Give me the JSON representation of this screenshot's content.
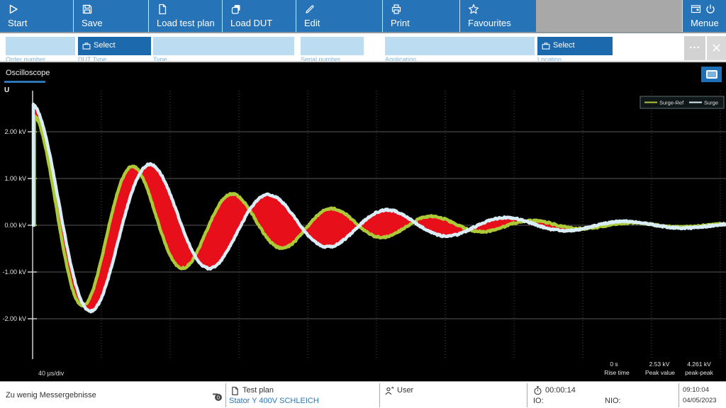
{
  "toolbar": {
    "buttons": [
      {
        "label": "Start",
        "icon": "play-icon"
      },
      {
        "label": "Save",
        "icon": "save-icon"
      },
      {
        "label": "Load test plan",
        "icon": "document-icon"
      },
      {
        "label": "Load DUT",
        "icon": "copy-icon"
      },
      {
        "label": "Edit",
        "icon": "pencil-icon"
      },
      {
        "label": "Print",
        "icon": "printer-icon"
      },
      {
        "label": "Favourites",
        "icon": "star-icon"
      }
    ],
    "menu_button": {
      "label": "Menue",
      "icons": [
        "window-icon",
        "power-icon"
      ]
    },
    "accent_color": "#2673b8"
  },
  "form": {
    "fields": [
      {
        "label": "Order number",
        "type": "input",
        "value": "",
        "placeholder": ""
      },
      {
        "label": "DUT Type",
        "type": "select",
        "button_label": "Select"
      },
      {
        "label": "Type",
        "type": "input",
        "value": "",
        "placeholder": ""
      },
      {
        "label": "Serial number",
        "type": "input",
        "value": "",
        "placeholder": ""
      },
      {
        "label": "Application",
        "type": "input",
        "value": "",
        "placeholder": ""
      },
      {
        "label": "Location",
        "type": "select",
        "button_label": "Select"
      }
    ],
    "ellipsis_button": "...",
    "field_color": "#bcdcf2",
    "select_color": "#1c69ae"
  },
  "scope": {
    "tab_label": "Oscilloscope"
  },
  "chart_data": {
    "type": "line",
    "title": "Oscilloscope",
    "y_axis": {
      "label": "U",
      "unit": "kV",
      "ticks": [
        "2.00 kV",
        "1.00 kV",
        "0.00 kV",
        "-1.00 kV",
        "-2.00 kV"
      ],
      "tick_values": [
        2,
        1,
        0,
        -1,
        -2
      ],
      "range_kv": [
        -2.9,
        2.9
      ]
    },
    "x_axis": {
      "div_label": "40 µs/div",
      "us_per_div": 40,
      "divisions": 10,
      "grid": "dotted"
    },
    "legend": [
      {
        "name": "Surge-Ref",
        "color": "#acca38"
      },
      {
        "name": "Surge",
        "color": "#d8edf6"
      }
    ],
    "diff_fill_color": "#e60f1a",
    "series": [
      {
        "name": "Surge-Ref",
        "color": "#acca38",
        "amplitude_kv": 2.35,
        "period_us": 58,
        "decay_us": 92,
        "start_x_offset": 2.5
      },
      {
        "name": "Surge",
        "color": "#d8edf6",
        "amplitude_kv": 2.58,
        "period_us": 69,
        "decay_us": 100,
        "start_x_offset": 1
      }
    ],
    "stats": [
      {
        "value": "0 s",
        "label": "Rise time"
      },
      {
        "value": "2.53 kV",
        "label": "Peak value"
      },
      {
        "value": "4.261 kV",
        "label": "peak-peak"
      }
    ]
  },
  "status_bar": {
    "message": "Zu wenig Messergebnisse",
    "message_count": "0",
    "test_plan": {
      "label": "Test plan",
      "name": "Stator Y 400V SCHLEICH"
    },
    "user_label": "User",
    "timer": {
      "elapsed": "00:00:14",
      "io_label": "IO:",
      "nio_label": "NIO:"
    },
    "clock": {
      "time": "09:10:04",
      "date": "04/05/2023"
    },
    "link_color": "#2e75b6"
  }
}
